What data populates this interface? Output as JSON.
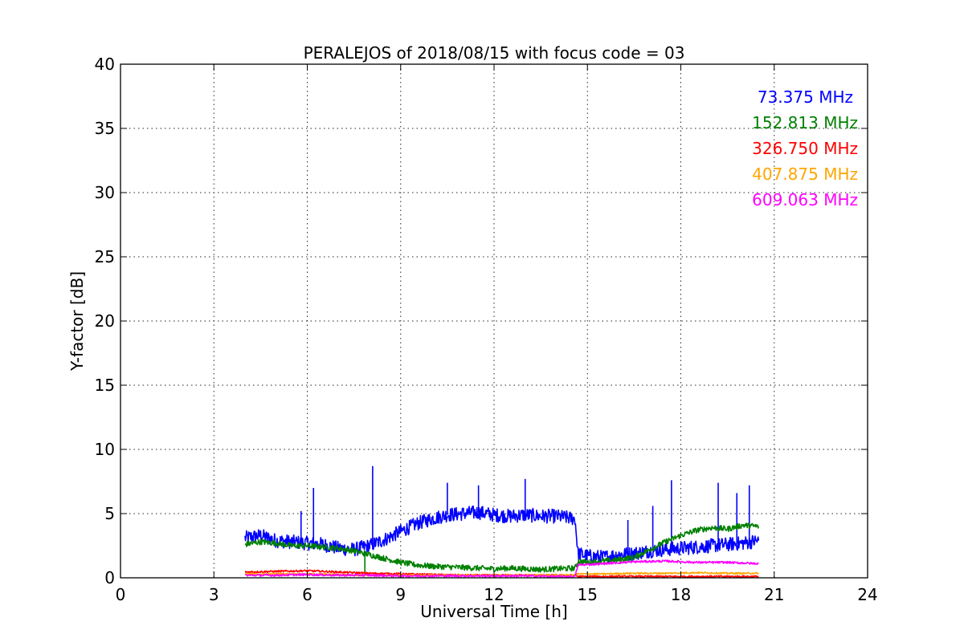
{
  "chart_data": {
    "type": "line",
    "title": "PERALEJOS of 2018/08/15 with focus code = 03",
    "xlabel": "Universal Time [h]",
    "ylabel": "Y-factor [dB]",
    "xlim": [
      0,
      24
    ],
    "ylim": [
      0,
      40
    ],
    "xticks": [
      0,
      3,
      6,
      9,
      12,
      15,
      18,
      21,
      24
    ],
    "xtick_labels": [
      "0",
      "3",
      "6",
      "9",
      "12",
      "15",
      "18",
      "21",
      "24"
    ],
    "yticks": [
      0,
      5,
      10,
      15,
      20,
      25,
      30,
      35,
      40
    ],
    "ytick_labels": [
      "0",
      "5",
      "10",
      "15",
      "20",
      "25",
      "30",
      "35",
      "40"
    ],
    "grid": true,
    "legend_position": "top-right",
    "series": [
      {
        "name": "73.375 MHz",
        "color": "#0000ff",
        "x": [
          4.0,
          4.5,
          5.0,
          5.5,
          6.0,
          6.5,
          7.0,
          7.5,
          8.0,
          8.5,
          9.0,
          9.5,
          10.0,
          10.5,
          11.0,
          11.5,
          12.0,
          12.5,
          13.0,
          13.5,
          14.0,
          14.6,
          14.7,
          15.0,
          15.5,
          16.0,
          16.5,
          17.0,
          17.5,
          18.0,
          18.5,
          19.0,
          19.5,
          20.0,
          20.5
        ],
        "y": [
          3.1,
          3.3,
          2.9,
          2.8,
          2.7,
          2.6,
          2.3,
          2.2,
          2.5,
          3.0,
          3.6,
          4.2,
          4.6,
          4.9,
          5.0,
          5.1,
          4.9,
          4.8,
          4.9,
          4.8,
          4.8,
          4.6,
          1.9,
          1.7,
          1.6,
          1.8,
          1.9,
          2.1,
          2.2,
          2.3,
          2.4,
          2.5,
          2.6,
          2.7,
          2.9
        ],
        "spikes": [
          [
            6.2,
            7.0
          ],
          [
            5.8,
            5.2
          ],
          [
            8.1,
            8.7
          ],
          [
            10.5,
            7.4
          ],
          [
            11.5,
            7.2
          ],
          [
            13.0,
            7.7
          ],
          [
            17.7,
            7.6
          ],
          [
            19.2,
            7.4
          ],
          [
            20.2,
            7.2
          ],
          [
            19.8,
            6.6
          ],
          [
            17.1,
            5.6
          ],
          [
            16.3,
            4.5
          ]
        ]
      },
      {
        "name": "152.813 MHz",
        "color": "#008000",
        "x": [
          4.0,
          4.5,
          5.0,
          5.5,
          6.0,
          6.5,
          7.0,
          7.5,
          8.0,
          8.5,
          9.0,
          9.5,
          10.0,
          10.5,
          11.0,
          11.5,
          12.0,
          12.5,
          13.0,
          13.5,
          14.0,
          14.6,
          14.7,
          15.0,
          15.5,
          16.0,
          16.5,
          17.0,
          17.5,
          18.0,
          18.5,
          19.0,
          19.5,
          20.0,
          20.5
        ],
        "y": [
          2.6,
          2.8,
          2.7,
          2.5,
          2.5,
          2.4,
          2.3,
          2.1,
          1.8,
          1.5,
          1.2,
          1.0,
          0.9,
          0.85,
          0.8,
          0.75,
          0.7,
          0.75,
          0.7,
          0.65,
          0.7,
          0.75,
          1.3,
          1.2,
          1.3,
          1.4,
          1.6,
          2.2,
          2.8,
          3.3,
          3.7,
          3.9,
          3.8,
          4.1,
          4.0
        ],
        "spikes": [
          [
            7.85,
            0.1
          ]
        ]
      },
      {
        "name": "326.750 MHz",
        "color": "#ff0000",
        "x": [
          4.0,
          5.0,
          6.0,
          7.0,
          8.0,
          9.0,
          10.0,
          11.0,
          12.0,
          13.0,
          14.0,
          14.6,
          14.7,
          16.0,
          18.0,
          20.5
        ],
        "y": [
          0.45,
          0.5,
          0.55,
          0.45,
          0.35,
          0.3,
          0.25,
          0.2,
          0.2,
          0.2,
          0.2,
          0.2,
          0.1,
          0.1,
          0.1,
          0.1
        ],
        "spikes": []
      },
      {
        "name": "407.875 MHz",
        "color": "#ffa500",
        "x": [
          4.0,
          5.0,
          6.0,
          7.0,
          8.0,
          9.0,
          10.0,
          11.0,
          12.0,
          13.0,
          14.0,
          14.6,
          14.7,
          15.5,
          16.5,
          17.5,
          18.5,
          19.5,
          20.5
        ],
        "y": [
          0.3,
          0.3,
          0.3,
          0.25,
          0.2,
          0.2,
          0.2,
          0.2,
          0.2,
          0.2,
          0.2,
          0.2,
          0.3,
          0.3,
          0.35,
          0.35,
          0.4,
          0.35,
          0.35
        ],
        "spikes": []
      },
      {
        "name": "609.063 MHz",
        "color": "#ff00ff",
        "x": [
          4.0,
          5.0,
          6.0,
          7.0,
          8.0,
          9.0,
          10.0,
          11.0,
          12.0,
          13.0,
          14.0,
          14.6,
          14.7,
          15.5,
          16.5,
          17.5,
          18.5,
          19.5,
          20.5
        ],
        "y": [
          0.2,
          0.2,
          0.25,
          0.2,
          0.2,
          0.15,
          0.15,
          0.15,
          0.15,
          0.15,
          0.1,
          0.1,
          1.0,
          1.1,
          1.25,
          1.3,
          1.2,
          1.2,
          1.1
        ],
        "spikes": []
      }
    ]
  }
}
